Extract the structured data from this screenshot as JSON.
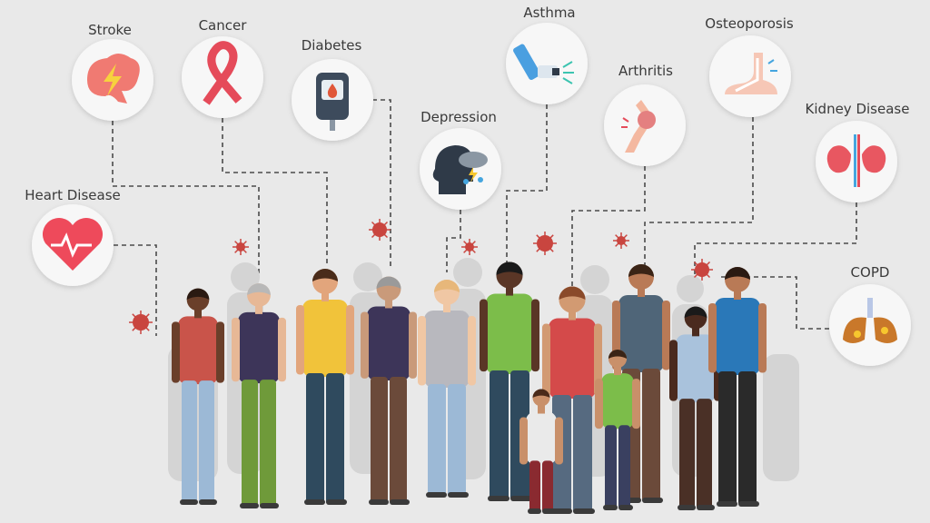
{
  "conditions": [
    {
      "id": "stroke",
      "label": "Stroke",
      "icon": "brain-lightning-icon"
    },
    {
      "id": "cancer",
      "label": "Cancer",
      "icon": "ribbon-icon"
    },
    {
      "id": "diabetes",
      "label": "Diabetes",
      "icon": "glucose-meter-icon"
    },
    {
      "id": "heart",
      "label": "Heart Disease",
      "icon": "heart-pulse-icon"
    },
    {
      "id": "depression",
      "label": "Depression",
      "icon": "head-storm-cloud-icon"
    },
    {
      "id": "asthma",
      "label": "Asthma",
      "icon": "inhaler-icon"
    },
    {
      "id": "arthritis",
      "label": "Arthritis",
      "icon": "knee-joint-icon"
    },
    {
      "id": "osteoporosis",
      "label": "Osteoporosis",
      "icon": "foot-bone-icon"
    },
    {
      "id": "kidney",
      "label": "Kidney Disease",
      "icon": "kidneys-icon"
    },
    {
      "id": "copd",
      "label": "COPD",
      "icon": "lungs-icon"
    }
  ],
  "colors": {
    "background": "#e9e9e9",
    "virus": "#c9453f",
    "accent": "#e8505b"
  }
}
